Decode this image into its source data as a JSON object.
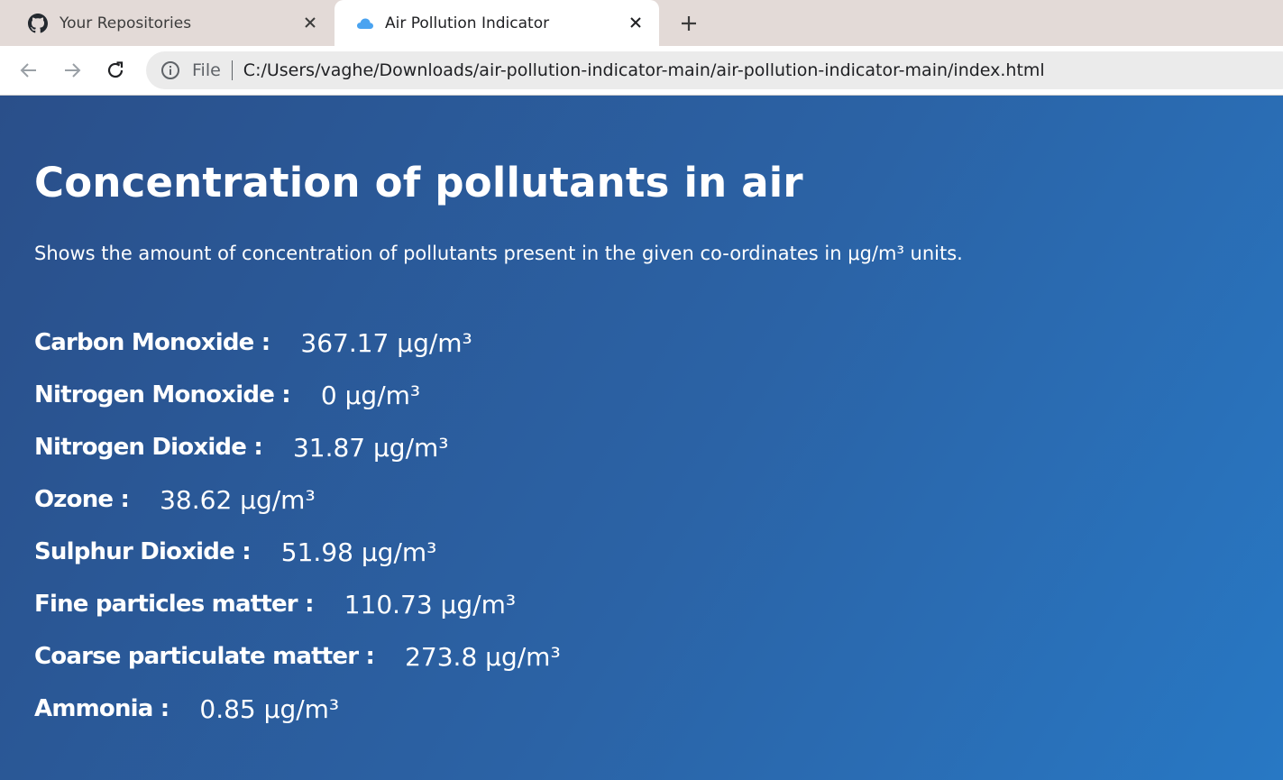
{
  "browser": {
    "tabs": [
      {
        "title": "Your Repositories",
        "active": false,
        "favicon": "github-icon"
      },
      {
        "title": "Air Pollution Indicator",
        "active": true,
        "favicon": "cloud-icon"
      }
    ],
    "address_bar": {
      "scheme_label": "File",
      "url": "C:/Users/vaghe/Downloads/air-pollution-indicator-main/air-pollution-indicator-main/index.html"
    }
  },
  "page": {
    "title": "Concentration of pollutants in air",
    "subtitle": "Shows the amount of concentration of pollutants present in the given co-ordinates in μg/m³ units.",
    "pollutants": [
      {
        "label": "Carbon Monoxide :",
        "value": "367.17 μg/m³"
      },
      {
        "label": "Nitrogen Monoxide :",
        "value": "0 μg/m³"
      },
      {
        "label": "Nitrogen Dioxide :",
        "value": "31.87 μg/m³"
      },
      {
        "label": "Ozone :",
        "value": "38.62 μg/m³"
      },
      {
        "label": "Sulphur Dioxide :",
        "value": "51.98 μg/m³"
      },
      {
        "label": "Fine particles matter :",
        "value": "110.73 μg/m³"
      },
      {
        "label": "Coarse particulate matter :",
        "value": "273.8 μg/m³"
      },
      {
        "label": "Ammonia :",
        "value": "0.85 μg/m³"
      }
    ]
  },
  "colors": {
    "tabstrip": "#e3dad7",
    "page_gradient_start": "#2a4f8a",
    "page_gradient_end": "#2878c4",
    "cloud_icon": "#4aa3f0"
  }
}
